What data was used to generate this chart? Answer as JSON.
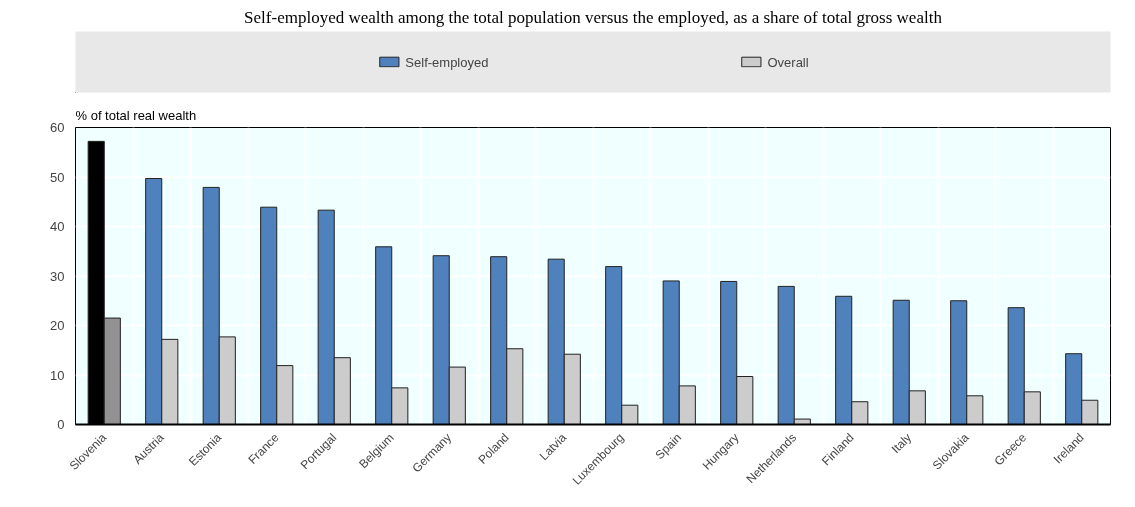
{
  "chart_data": {
    "type": "bar",
    "title": "Self-employed wealth among the total population versus the employed, as a share of total gross wealth",
    "ylabel": "% of total real wealth",
    "categories": [
      "Slovenia",
      "Austria",
      "Estonia",
      "France",
      "Portugal",
      "Belgium",
      "Germany",
      "Poland",
      "Latvia",
      "Luxembourg",
      "Spain",
      "Hungary",
      "Netherlands",
      "Finland",
      "Italy",
      "Slovakia",
      "Greece",
      "Ireland"
    ],
    "series": [
      {
        "name": "Self-employed",
        "color": "#4f81bd",
        "colors": [
          "#000000",
          "#4f81bd",
          "#4f81bd",
          "#4f81bd",
          "#4f81bd",
          "#4f81bd",
          "#4f81bd",
          "#4f81bd",
          "#4f81bd",
          "#4f81bd",
          "#4f81bd",
          "#4f81bd",
          "#4f81bd",
          "#4f81bd",
          "#4f81bd",
          "#4f81bd",
          "#4f81bd",
          "#4f81bd"
        ],
        "values": [
          57.2,
          49.7,
          47.9,
          43.9,
          43.3,
          35.9,
          34.1,
          33.9,
          33.4,
          31.9,
          29.0,
          28.9,
          27.9,
          25.9,
          25.1,
          25.0,
          23.6,
          14.3
        ]
      },
      {
        "name": "Overall",
        "color": "#cccccc",
        "colors": [
          "#929292",
          "#cccccc",
          "#cccccc",
          "#cccccc",
          "#cccccc",
          "#cccccc",
          "#cccccc",
          "#cccccc",
          "#cccccc",
          "#cccccc",
          "#cccccc",
          "#cccccc",
          "#cccccc",
          "#cccccc",
          "#cccccc",
          "#cccccc",
          "#cccccc",
          "#cccccc"
        ],
        "values": [
          21.5,
          17.2,
          17.7,
          11.9,
          13.5,
          7.4,
          11.6,
          15.3,
          14.2,
          3.9,
          7.8,
          9.7,
          1.1,
          4.6,
          6.8,
          5.8,
          6.6,
          4.9
        ]
      }
    ],
    "ylim": [
      0,
      60
    ],
    "yticks": [
      0,
      10,
      20,
      30,
      40,
      50,
      60
    ],
    "grid": true,
    "legend": "top"
  }
}
